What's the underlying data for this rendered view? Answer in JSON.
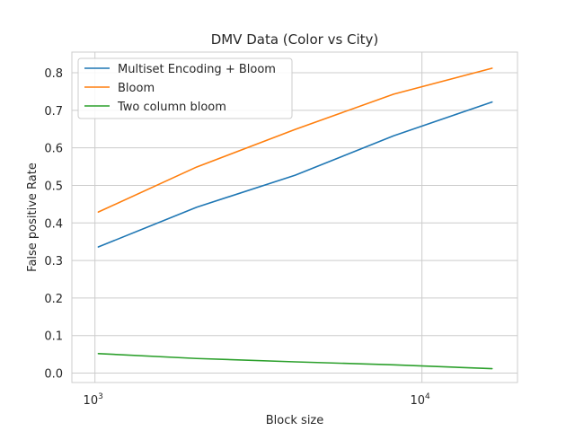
{
  "chart_data": {
    "type": "line",
    "title": "DMV Data (Color vs City)",
    "xlabel": "Block size",
    "ylabel": "False positive Rate",
    "xscale": "log",
    "xlim": [
      850,
      19600
    ],
    "ylim": [
      -0.025,
      0.855
    ],
    "grid": true,
    "legend_position": "top-left",
    "x": [
      1024,
      2048,
      4096,
      8192,
      16384
    ],
    "x_ticks": [
      {
        "value": 1000,
        "base": "10",
        "exp": "3"
      },
      {
        "value": 10000,
        "base": "10",
        "exp": "4"
      }
    ],
    "y_ticks": [
      0.0,
      0.1,
      0.2,
      0.3,
      0.4,
      0.5,
      0.6,
      0.7,
      0.8
    ],
    "y_tick_labels": [
      "0.0",
      "0.1",
      "0.2",
      "0.3",
      "0.4",
      "0.5",
      "0.6",
      "0.7",
      "0.8"
    ],
    "series": [
      {
        "name": "Multiset Encoding + Bloom",
        "color": "#1f77b4",
        "values": [
          0.336,
          0.442,
          0.527,
          0.632,
          0.722
        ]
      },
      {
        "name": "Bloom",
        "color": "#ff7f0e",
        "values": [
          0.429,
          0.549,
          0.649,
          0.743,
          0.812
        ]
      },
      {
        "name": "Two column bloom",
        "color": "#2ca02c",
        "values": [
          0.052,
          0.039,
          0.03,
          0.022,
          0.012
        ]
      }
    ]
  }
}
